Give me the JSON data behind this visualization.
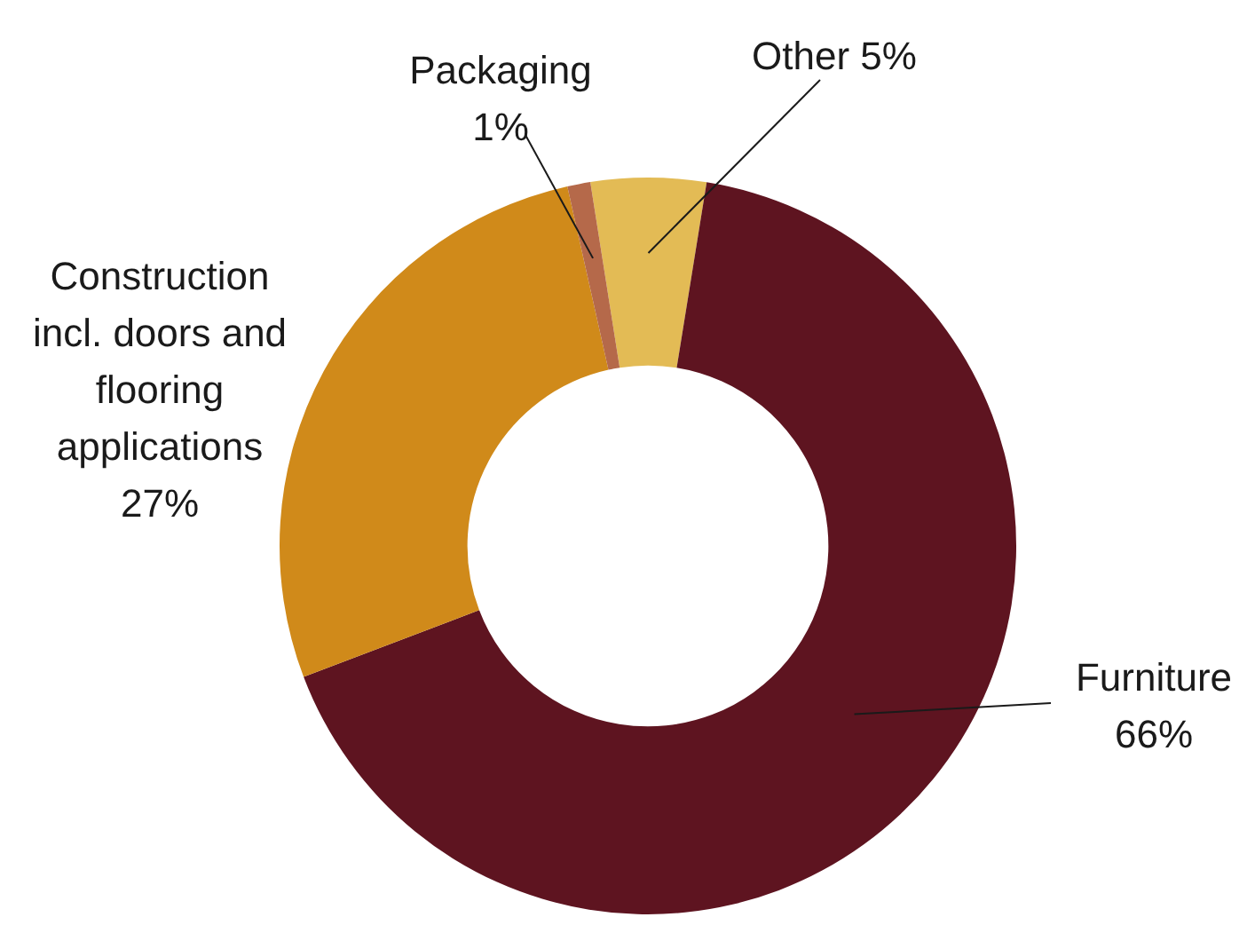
{
  "chart_data": {
    "type": "donut",
    "categories": [
      "Other",
      "Furniture",
      "Construction incl. doors and flooring applications",
      "Packaging"
    ],
    "values": [
      5,
      66,
      27,
      1
    ],
    "colors": [
      "#e3bb55",
      "#5e1420",
      "#d08a1a",
      "#b5694a"
    ],
    "value_labels": [
      "5%",
      "66%",
      "27%",
      "1%"
    ],
    "legend": false
  }
}
